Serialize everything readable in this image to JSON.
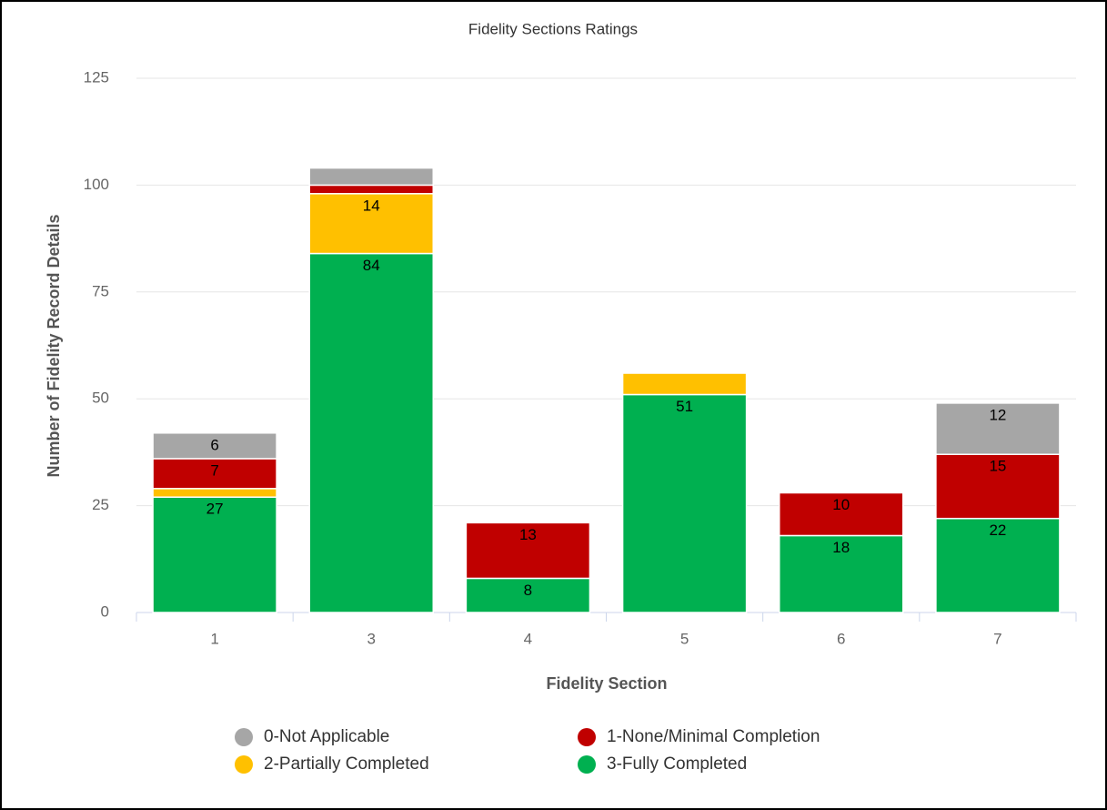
{
  "chart_data": {
    "type": "stacked_bar",
    "title": "Fidelity Sections Ratings",
    "x_label": "Fidelity Section",
    "y_label": "Number of Fidelity Record Details",
    "categories": [
      "1",
      "3",
      "4",
      "5",
      "6",
      "7"
    ],
    "series": [
      {
        "name": "0-Not Applicable",
        "color": "#a6a6a6",
        "values": [
          6,
          4,
          0,
          0,
          0,
          12
        ]
      },
      {
        "name": "1-None/Minimal Completion",
        "color": "#c00000",
        "values": [
          7,
          2,
          13,
          0,
          10,
          15
        ]
      },
      {
        "name": "2-Partially Completed",
        "color": "#ffc000",
        "values": [
          2,
          14,
          0,
          5,
          0,
          0
        ]
      },
      {
        "name": "3-Fully Completed",
        "color": "#00b050",
        "values": [
          27,
          84,
          8,
          51,
          18,
          22
        ]
      }
    ],
    "ylim": [
      0,
      125
    ],
    "yticks": [
      0,
      25,
      50,
      75,
      100,
      125
    ],
    "grid": true,
    "legend": "bottom"
  }
}
